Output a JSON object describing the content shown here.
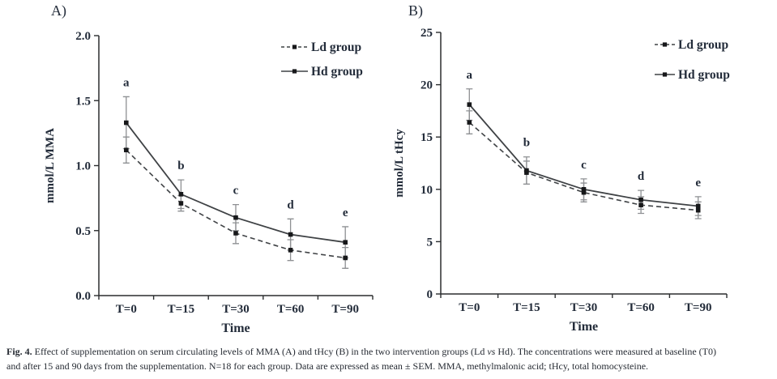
{
  "panels": [
    {
      "label": "A)"
    },
    {
      "label": "B)"
    }
  ],
  "chart_data": [
    {
      "type": "line",
      "panel": "A",
      "categories": [
        "T=0",
        "T=15",
        "T=30",
        "T=60",
        "T=90"
      ],
      "xlabel": "Time",
      "ylabel": "mmol/L MMA",
      "ylim": [
        0,
        2
      ],
      "yticks": [
        "0.0",
        "0.5",
        "1.0",
        "1.5",
        "2.0"
      ],
      "grid": false,
      "legend_position": "top-right",
      "series": [
        {
          "name": "Ld group",
          "line": "dashed",
          "values": [
            1.12,
            0.71,
            0.48,
            0.35,
            0.29
          ],
          "sem": [
            0.1,
            0.06,
            0.08,
            0.08,
            0.08
          ]
        },
        {
          "name": "Hd group",
          "line": "solid",
          "values": [
            1.33,
            0.78,
            0.6,
            0.47,
            0.41
          ],
          "sem": [
            0.2,
            0.11,
            0.1,
            0.12,
            0.12
          ]
        }
      ],
      "sig_letters": [
        "a",
        "b",
        "c",
        "d",
        "e"
      ]
    },
    {
      "type": "line",
      "panel": "B",
      "categories": [
        "T=0",
        "T=15",
        "T=30",
        "T=60",
        "T=90"
      ],
      "xlabel": "Time",
      "ylabel": "mmol/L tHcy",
      "ylim": [
        0,
        25
      ],
      "yticks": [
        "0",
        "5",
        "10",
        "15",
        "20",
        "25"
      ],
      "grid": false,
      "legend_position": "top-right",
      "series": [
        {
          "name": "Ld group",
          "line": "dashed",
          "values": [
            16.4,
            11.6,
            9.7,
            8.5,
            8.0
          ],
          "sem": [
            1.1,
            1.1,
            0.9,
            0.8,
            0.8
          ]
        },
        {
          "name": "Hd group",
          "line": "solid",
          "values": [
            18.1,
            11.8,
            10.0,
            9.0,
            8.4
          ],
          "sem": [
            1.5,
            1.3,
            1.0,
            0.9,
            0.9
          ]
        }
      ],
      "sig_letters": [
        "a",
        "b",
        "c",
        "d",
        "e"
      ]
    }
  ],
  "caption": {
    "lines": [
      [
        {
          "text": "Fig. 4.",
          "bold": true
        },
        {
          "text": " Effect of supplementation on serum circulating levels of MMA (A) and tHcy (B) in the two intervention groups (Ld "
        },
        {
          "text": "vs",
          "italic": true
        },
        {
          "text": " Hd). The concentrations were measured at baseline (T0)"
        }
      ],
      [
        {
          "text": "and after 15 and 90 days from the supplementation. N=18 for each group. Data are expressed as mean ± SEM. MMA, methylmalonic acid; tHcy, total homocysteine."
        }
      ]
    ]
  },
  "colors": {
    "background": "#ffffff",
    "axis": "#2b2d2f",
    "line": "#3f4245",
    "marker": "#17181a",
    "error_bar": "#8e9093",
    "chart_text": "#232c3a",
    "caption_text": "#262b33"
  }
}
